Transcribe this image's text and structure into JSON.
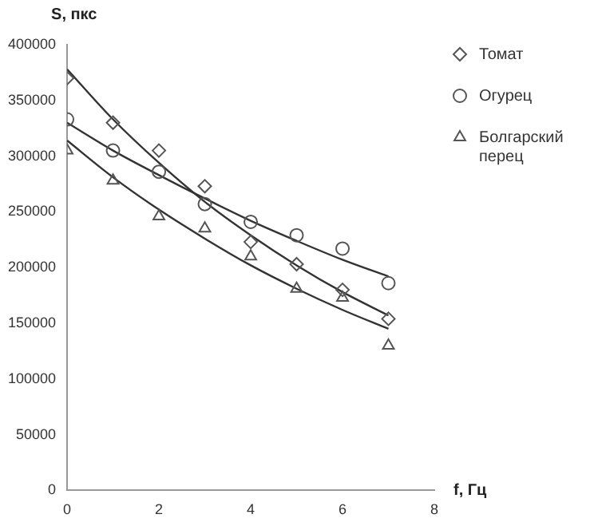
{
  "chart_data": {
    "type": "scatter",
    "xlabel": "f, Гц",
    "ylabel": "S, пкс",
    "xlim": [
      0,
      8
    ],
    "xticks": [
      0,
      2,
      4,
      6,
      8
    ],
    "ylim": [
      0,
      400000
    ],
    "yticks": [
      0,
      50000,
      100000,
      150000,
      200000,
      250000,
      300000,
      350000,
      400000
    ],
    "grid": false,
    "legend": "top right",
    "x": [
      0,
      1,
      2,
      3,
      4,
      5,
      6,
      7
    ],
    "series": [
      {
        "name": "Томат",
        "color": "#555555",
        "marker": "diamond",
        "values": [
          370000,
          330000,
          305000,
          273000,
          223000,
          203000,
          180000,
          154000
        ]
      },
      {
        "name": "Огурец",
        "color": "#555555",
        "marker": "circle",
        "values": [
          333000,
          305000,
          286000,
          257000,
          241000,
          229000,
          217000,
          186000
        ]
      },
      {
        "name": "Болгарский перец",
        "color": "#555555",
        "marker": "triangle",
        "values": [
          305000,
          278000,
          246000,
          235000,
          210000,
          181000,
          173000,
          130000
        ]
      },
      {
        "type": "line",
        "color": "#333333",
        "marker": "none",
        "values": [
          378000,
          333000,
          294000,
          259000,
          229000,
          202000,
          178000,
          157000
        ]
      },
      {
        "type": "line",
        "color": "#333333",
        "marker": "none",
        "values": [
          330000,
          305000,
          283000,
          262000,
          242000,
          224000,
          207000,
          192000
        ]
      },
      {
        "type": "line",
        "color": "#333333",
        "marker": "none",
        "values": [
          314000,
          281000,
          252000,
          226000,
          202000,
          181000,
          162000,
          145000
        ]
      }
    ]
  }
}
